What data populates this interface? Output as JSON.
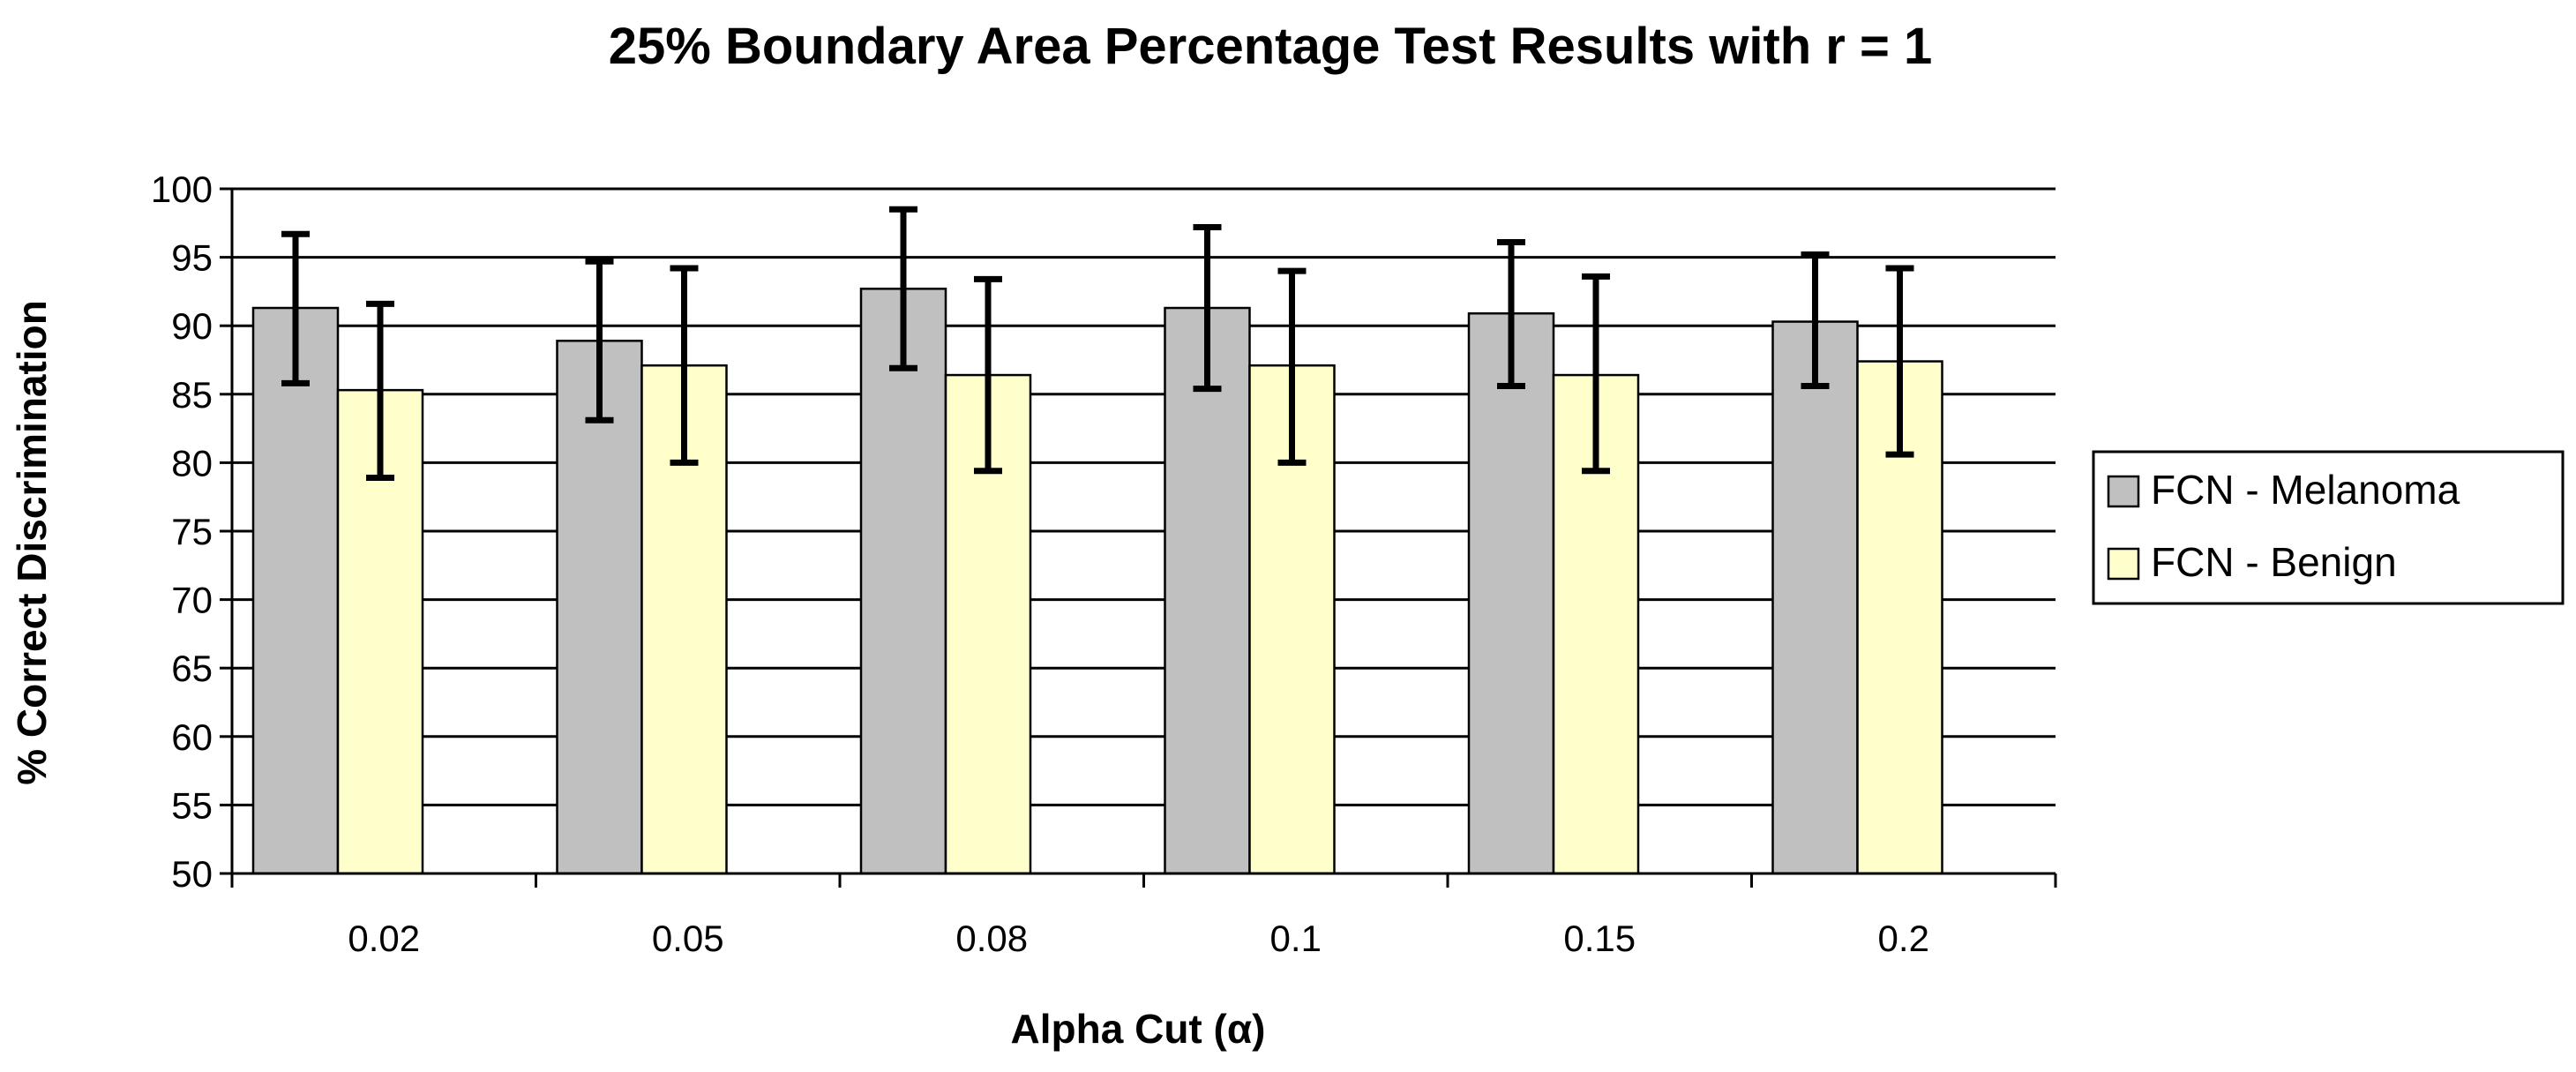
{
  "chart_data": {
    "type": "bar",
    "title": "25% Boundary Area Percentage Test Results with r = 1",
    "xlabel": "Alpha Cut (α)",
    "ylabel": "% Correct Discrimination",
    "categories": [
      "0.02",
      "0.05",
      "0.08",
      "0.1",
      "0.15",
      "0.2"
    ],
    "ylim": [
      50,
      100
    ],
    "yticks": [
      50,
      55,
      60,
      65,
      70,
      75,
      80,
      85,
      90,
      95,
      100
    ],
    "grid": true,
    "legend_position": "right",
    "series": [
      {
        "name": "FCN - Melanoma",
        "color": "#c0c0c0",
        "values": [
          91.3,
          88.9,
          92.7,
          91.3,
          90.9,
          90.3
        ],
        "error_low": [
          85.8,
          83.1,
          86.9,
          85.4,
          85.6,
          85.6
        ],
        "error_high": [
          96.7,
          94.7,
          98.5,
          97.2,
          96.1,
          95.2
        ]
      },
      {
        "name": "FCN - Benign",
        "color": "#ffffcc",
        "values": [
          85.3,
          87.1,
          86.4,
          87.1,
          86.4,
          87.4
        ],
        "error_low": [
          78.9,
          80.0,
          79.4,
          80.0,
          79.4,
          80.6
        ],
        "error_high": [
          91.6,
          94.2,
          93.4,
          94.0,
          93.6,
          94.2
        ]
      }
    ]
  }
}
